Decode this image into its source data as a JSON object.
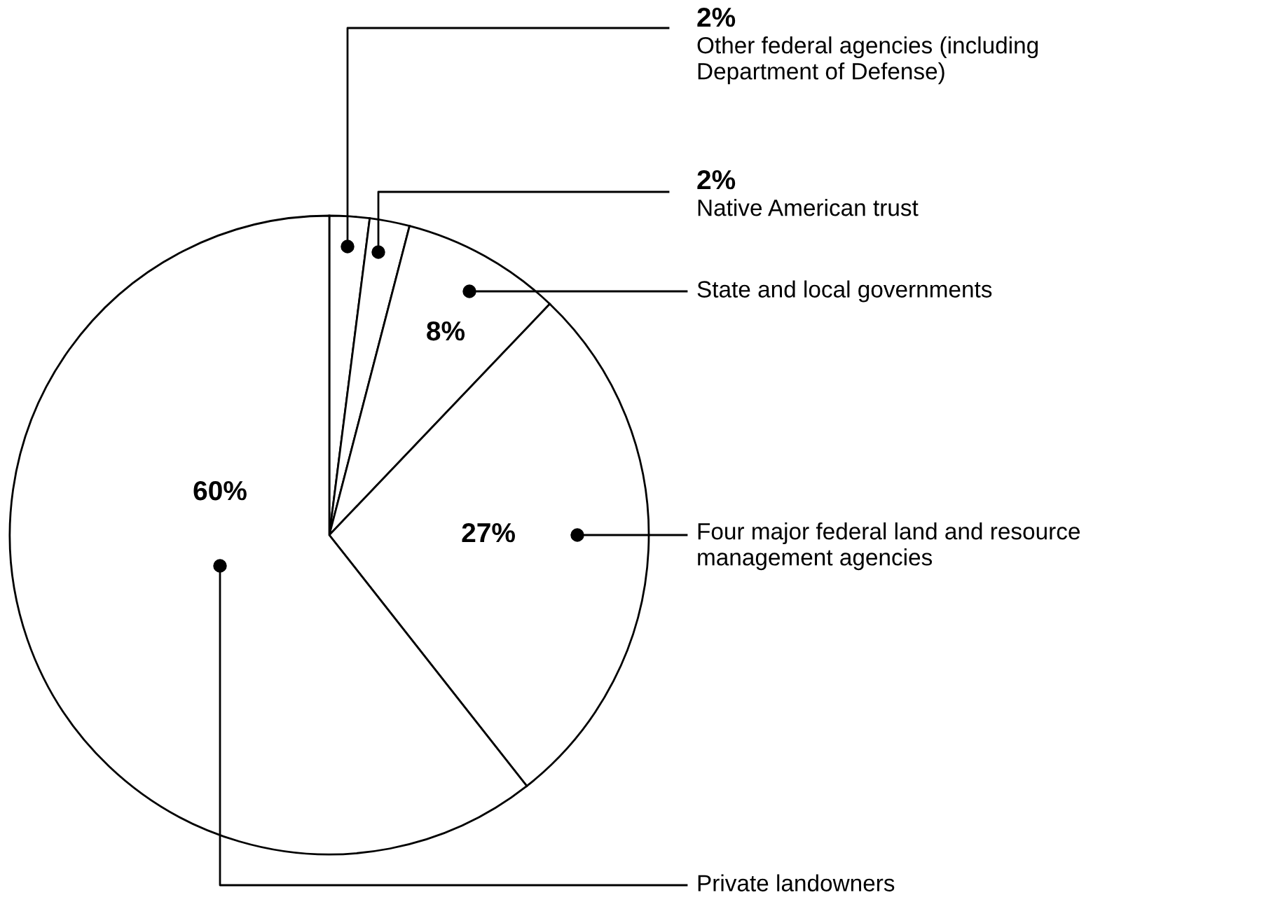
{
  "chart_data": {
    "type": "pie",
    "categories": [
      "Other federal agencies (including\nDepartment of Defense)",
      "Native American trust",
      "State and local governments",
      "Four major federal land and resource\nmanagement agencies",
      "Private landowners"
    ],
    "values": [
      2,
      2,
      8,
      27,
      60
    ],
    "value_labels": [
      "2%",
      "2%",
      "8%",
      "27%",
      "60%"
    ],
    "colors": [
      "#ffffff",
      "#ffffff",
      "#ffffff",
      "#ffffff",
      "#ffffff"
    ]
  }
}
